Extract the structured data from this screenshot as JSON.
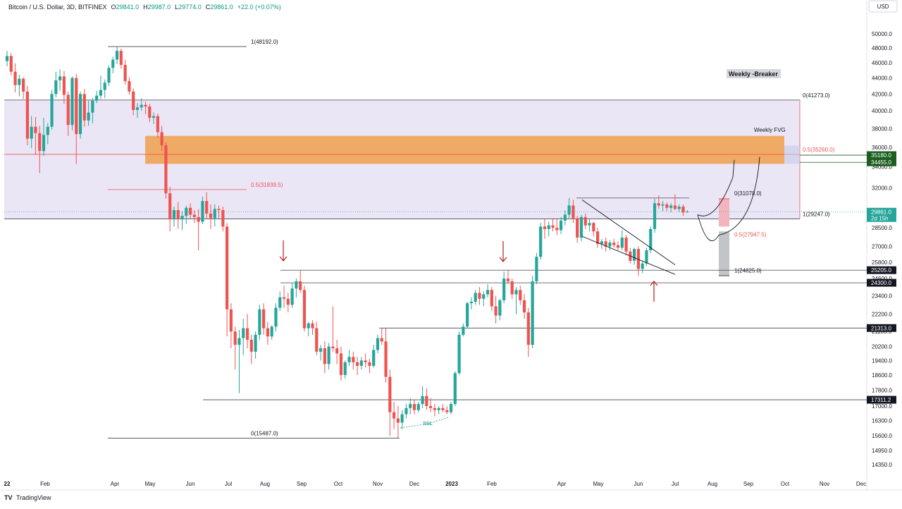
{
  "header": {
    "symbol": "Bitcoin / U.S. Dollar, 3D, BITFINEX",
    "open_label": "O",
    "open": "29841.0",
    "high_label": "H",
    "high": "29987.0",
    "low_label": "L",
    "low": "29774.0",
    "close_label": "C",
    "close": "29861.0",
    "change": "+22.0 (+0.07%)",
    "currency": "USD"
  },
  "footer": {
    "brand": "TradingView",
    "logo": "tradingview-logo"
  },
  "colors": {
    "up": "#26a69a",
    "down": "#ef5350",
    "fvg": "#f0a04b",
    "zone": "#d1c4e9",
    "green_label": "#1b5e20"
  },
  "chart_data": {
    "type": "candlestick",
    "scale": "log",
    "x_axis_labels": [
      "22",
      "Feb",
      "Apr",
      "May",
      "Jun",
      "Jul",
      "Aug",
      "Sep",
      "Oct",
      "Nov",
      "Dec",
      "2023",
      "Feb",
      "Apr",
      "May",
      "Jun",
      "Jul",
      "Aug",
      "Sep",
      "Oct",
      "Nov",
      "Dec"
    ],
    "y_ticks": [
      "50000.0",
      "48000.0",
      "46000.0",
      "44000.0",
      "42000.0",
      "40000.0",
      "38000.0",
      "36000.0",
      "34000.0",
      "32000.0",
      "30000.0",
      "28500.0",
      "27000.0",
      "25800.0",
      "24600.0",
      "23400.0",
      "22200.0",
      "21100.0",
      "20200.0",
      "19400.0",
      "18600.0",
      "17800.0",
      "17000.0",
      "16300.0",
      "15600.0",
      "14950.0",
      "14350.0"
    ],
    "ylim": [
      14000,
      52000
    ],
    "price_labels": [
      {
        "text": "35180.0",
        "value": 35180,
        "color": "green"
      },
      {
        "text": "34455.0",
        "value": 34455,
        "color": "green"
      },
      {
        "text": "29861.0",
        "value": 29861,
        "color": "teal",
        "sub": "2d 15h"
      },
      {
        "text": "25205.0",
        "value": 25205,
        "color": "black"
      },
      {
        "text": "24300.0",
        "value": 24300,
        "color": "black"
      },
      {
        "text": "21313.0",
        "value": 21313,
        "color": "black"
      },
      {
        "text": "17311.2",
        "value": 17311.2,
        "color": "black"
      }
    ],
    "annotations": {
      "weekly_breaker": "Weekly -Breaker",
      "weekly_fvg": "Weekly FVG",
      "ssl": "SSL",
      "fib_labels": [
        {
          "text": "1(48192.0)",
          "value": 48192
        },
        {
          "text": "0(41273.0)",
          "value": 41273
        },
        {
          "text": "0.5(35260.0)",
          "value": 35260
        },
        {
          "text": "0.5(31839.5)",
          "value": 31839.5
        },
        {
          "text": "0(31070.0)",
          "value": 31070
        },
        {
          "text": "1(29247.0)",
          "value": 29247
        },
        {
          "text": "0.5(27947.5)",
          "value": 27947.5
        },
        {
          "text": "1(24825.0)",
          "value": 24825
        },
        {
          "text": "0(15487.0)",
          "value": 15487
        }
      ]
    },
    "candles": [
      [
        46200,
        47600,
        45500,
        46900
      ],
      [
        46900,
        47300,
        44300,
        44800
      ],
      [
        44800,
        45900,
        42200,
        43100
      ],
      [
        43100,
        44400,
        41700,
        43900
      ],
      [
        43900,
        44100,
        41400,
        42300
      ],
      [
        42300,
        43000,
        36200,
        36900
      ],
      [
        36900,
        39400,
        35900,
        38200
      ],
      [
        38200,
        39300,
        35200,
        37500
      ],
      [
        37500,
        38300,
        33400,
        35600
      ],
      [
        35600,
        39200,
        35100,
        37300
      ],
      [
        37300,
        38600,
        36300,
        38200
      ],
      [
        38200,
        42500,
        37900,
        42000
      ],
      [
        42000,
        44800,
        41600,
        43700
      ],
      [
        43700,
        45100,
        42400,
        44200
      ],
      [
        44200,
        44900,
        40800,
        41900
      ],
      [
        41900,
        42300,
        37200,
        38400
      ],
      [
        38400,
        44200,
        37800,
        44000
      ],
      [
        44000,
        44500,
        34300,
        37400
      ],
      [
        37400,
        42300,
        36900,
        42000
      ],
      [
        42000,
        42600,
        38200,
        38900
      ],
      [
        38900,
        41200,
        38300,
        39800
      ],
      [
        39800,
        41500,
        38600,
        41200
      ],
      [
        41200,
        42400,
        40900,
        41800
      ],
      [
        41800,
        44300,
        41400,
        42500
      ],
      [
        42500,
        43800,
        41500,
        43400
      ],
      [
        43400,
        45600,
        43000,
        45300
      ],
      [
        45300,
        46800,
        44600,
        46400
      ],
      [
        46400,
        48192,
        45800,
        47600
      ],
      [
        47600,
        47900,
        45200,
        45700
      ],
      [
        45700,
        46400,
        43200,
        43600
      ],
      [
        43600,
        44100,
        41900,
        42300
      ],
      [
        42300,
        42700,
        39500,
        40100
      ],
      [
        40100,
        40900,
        39200,
        40400
      ],
      [
        40400,
        41500,
        40000,
        40700
      ],
      [
        40700,
        41100,
        39600,
        40500
      ],
      [
        40500,
        40800,
        38700,
        39200
      ],
      [
        39200,
        39800,
        38500,
        39400
      ],
      [
        39400,
        39700,
        37000,
        37600
      ],
      [
        37600,
        38300,
        35600,
        36200
      ],
      [
        36200,
        36500,
        31000,
        31500
      ],
      [
        31500,
        32100,
        28200,
        29200
      ],
      [
        29200,
        30300,
        28600,
        30000
      ],
      [
        30000,
        30700,
        28400,
        29200
      ],
      [
        29200,
        29900,
        28300,
        29500
      ],
      [
        29500,
        30400,
        28800,
        30200
      ],
      [
        30200,
        30600,
        29200,
        29600
      ],
      [
        29600,
        30000,
        28900,
        29400
      ],
      [
        29400,
        30100,
        26700,
        29000
      ],
      [
        29000,
        31200,
        28800,
        30800
      ],
      [
        30800,
        31600,
        29200,
        29700
      ],
      [
        29700,
        30500,
        28400,
        29300
      ],
      [
        29300,
        30500,
        28600,
        30100
      ],
      [
        30100,
        30400,
        29300,
        30000
      ],
      [
        30000,
        30300,
        28200,
        28600
      ],
      [
        28600,
        28900,
        20800,
        22500
      ],
      [
        22500,
        22900,
        20100,
        21100
      ],
      [
        21100,
        21400,
        18900,
        20300
      ],
      [
        20300,
        21200,
        17650,
        20700
      ],
      [
        20700,
        21900,
        19700,
        21300
      ],
      [
        21300,
        22200,
        20100,
        20600
      ],
      [
        20600,
        20900,
        19200,
        19900
      ],
      [
        19900,
        21100,
        19500,
        20900
      ],
      [
        20900,
        22800,
        20600,
        22500
      ],
      [
        22500,
        22900,
        20900,
        21300
      ],
      [
        21300,
        21700,
        20300,
        20800
      ],
      [
        20800,
        21500,
        20600,
        21400
      ],
      [
        21400,
        22900,
        21100,
        22600
      ],
      [
        22600,
        23700,
        22400,
        23300
      ],
      [
        23300,
        24100,
        22600,
        23200
      ],
      [
        23200,
        23600,
        22300,
        22800
      ],
      [
        22800,
        24300,
        22600,
        23900
      ],
      [
        23900,
        24600,
        23300,
        24400
      ],
      [
        24400,
        25205,
        23600,
        23800
      ],
      [
        23800,
        24100,
        21100,
        21300
      ],
      [
        21300,
        21700,
        20800,
        21600
      ],
      [
        21600,
        21800,
        20900,
        21300
      ],
      [
        21300,
        21700,
        19700,
        19900
      ],
      [
        19900,
        20300,
        19400,
        20100
      ],
      [
        20100,
        20500,
        18700,
        19200
      ],
      [
        19200,
        20400,
        18900,
        20200
      ],
      [
        20200,
        22700,
        19900,
        20100
      ],
      [
        20100,
        20600,
        19200,
        19800
      ],
      [
        19800,
        20200,
        18300,
        18600
      ],
      [
        18600,
        19400,
        18400,
        19300
      ],
      [
        19300,
        20000,
        19100,
        19600
      ],
      [
        19600,
        19900,
        18900,
        19300
      ],
      [
        19300,
        19600,
        18600,
        19100
      ],
      [
        19100,
        19600,
        18900,
        19400
      ],
      [
        19400,
        19800,
        19000,
        19300
      ],
      [
        19300,
        19500,
        18700,
        19100
      ],
      [
        19100,
        20300,
        19000,
        20000
      ],
      [
        20000,
        20900,
        19800,
        20700
      ],
      [
        20700,
        21313,
        20300,
        20500
      ],
      [
        20500,
        21300,
        18200,
        18500
      ],
      [
        18500,
        18900,
        15600,
        16700
      ],
      [
        16700,
        17200,
        15900,
        16400
      ],
      [
        16400,
        17000,
        15487,
        16200
      ],
      [
        16200,
        16800,
        15900,
        16600
      ],
      [
        16600,
        17100,
        16400,
        16900
      ],
      [
        16900,
        17400,
        16600,
        17100
      ],
      [
        17100,
        17300,
        16600,
        16800
      ],
      [
        16800,
        17200,
        16700,
        17100
      ],
      [
        17100,
        18000,
        16900,
        17500
      ],
      [
        17500,
        17900,
        16800,
        17000
      ],
      [
        17000,
        17400,
        16700,
        16900
      ],
      [
        16900,
        17100,
        16500,
        16800
      ],
      [
        16800,
        17000,
        16600,
        16900
      ],
      [
        16900,
        17100,
        16700,
        16800
      ],
      [
        16800,
        17000,
        16600,
        16700
      ],
      [
        16700,
        17200,
        16600,
        17100
      ],
      [
        17100,
        18800,
        17000,
        18700
      ],
      [
        18700,
        21100,
        18600,
        20900
      ],
      [
        20900,
        21600,
        20800,
        21400
      ],
      [
        21400,
        23000,
        21300,
        22900
      ],
      [
        22900,
        23300,
        22500,
        23000
      ],
      [
        23000,
        23800,
        22800,
        23600
      ],
      [
        23600,
        24000,
        22800,
        23200
      ],
      [
        23200,
        23700,
        22700,
        23500
      ],
      [
        23500,
        24200,
        23300,
        23800
      ],
      [
        23800,
        24000,
        22400,
        22700
      ],
      [
        22700,
        23400,
        21600,
        22100
      ],
      [
        22100,
        23200,
        21800,
        23100
      ],
      [
        23100,
        25100,
        22900,
        24600
      ],
      [
        24600,
        25200,
        24200,
        24400
      ],
      [
        24400,
        24600,
        23200,
        23500
      ],
      [
        23500,
        24000,
        22200,
        23800
      ],
      [
        23800,
        24100,
        22800,
        23100
      ],
      [
        23100,
        23500,
        21900,
        22300
      ],
      [
        22300,
        22600,
        19600,
        20300
      ],
      [
        20300,
        24800,
        20100,
        24400
      ],
      [
        24400,
        26500,
        24200,
        26200
      ],
      [
        26200,
        28900,
        26000,
        28600
      ],
      [
        28600,
        29200,
        27600,
        28400
      ],
      [
        28400,
        29000,
        27800,
        28700
      ],
      [
        28700,
        29300,
        28200,
        28500
      ],
      [
        28500,
        29200,
        27900,
        28300
      ],
      [
        28300,
        29400,
        28000,
        29100
      ],
      [
        29100,
        30000,
        28700,
        29600
      ],
      [
        29600,
        31070,
        29300,
        30400
      ],
      [
        30400,
        30900,
        28900,
        29300
      ],
      [
        29300,
        29500,
        27300,
        27700
      ],
      [
        27700,
        29600,
        27400,
        29400
      ],
      [
        29400,
        29700,
        28400,
        28700
      ],
      [
        28700,
        29200,
        28200,
        28900
      ],
      [
        28900,
        29000,
        27800,
        28200
      ],
      [
        28200,
        28500,
        26900,
        27200
      ],
      [
        27200,
        27600,
        26800,
        27400
      ],
      [
        27400,
        27700,
        26600,
        27000
      ],
      [
        27000,
        27500,
        26700,
        27300
      ],
      [
        27300,
        27600,
        26900,
        27100
      ],
      [
        27100,
        27400,
        26700,
        26900
      ],
      [
        26900,
        28300,
        26700,
        27700
      ],
      [
        27700,
        27900,
        26300,
        26600
      ],
      [
        26600,
        26900,
        25700,
        25900
      ],
      [
        25900,
        26900,
        25600,
        26800
      ],
      [
        26800,
        27000,
        24800,
        25300
      ],
      [
        25300,
        25900,
        25000,
        25700
      ],
      [
        25700,
        26900,
        25500,
        26700
      ],
      [
        26700,
        28600,
        26500,
        28400
      ],
      [
        28400,
        31000,
        28100,
        30600
      ],
      [
        30600,
        31300,
        30100,
        30400
      ],
      [
        30400,
        30800,
        29900,
        30500
      ],
      [
        30500,
        30700,
        29900,
        30200
      ],
      [
        30200,
        30600,
        29800,
        30400
      ],
      [
        30400,
        31400,
        30000,
        30100
      ],
      [
        30100,
        30500,
        29800,
        30300
      ],
      [
        30300,
        30500,
        29500,
        29800
      ],
      [
        29841,
        29987,
        29774,
        29861
      ]
    ]
  }
}
